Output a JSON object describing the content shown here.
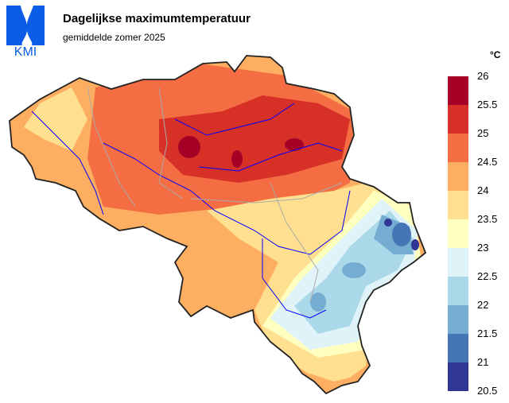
{
  "header": {
    "title": "Dagelijkse maximumtemperatuur",
    "subtitle": "gemiddelde zomer 2025",
    "logo_text": "KMI"
  },
  "legend": {
    "unit": "°C",
    "labels": [
      "26",
      "25.5",
      "25",
      "24.5",
      "24",
      "23.5",
      "23",
      "22.5",
      "22",
      "21.5",
      "21",
      "20.5"
    ],
    "colors": [
      "#a50026",
      "#d73027",
      "#f46d43",
      "#fdae61",
      "#fee090",
      "#ffffbf",
      "#e0f3f8",
      "#abd9e9",
      "#74add1",
      "#4575b4",
      "#313695"
    ]
  }
}
